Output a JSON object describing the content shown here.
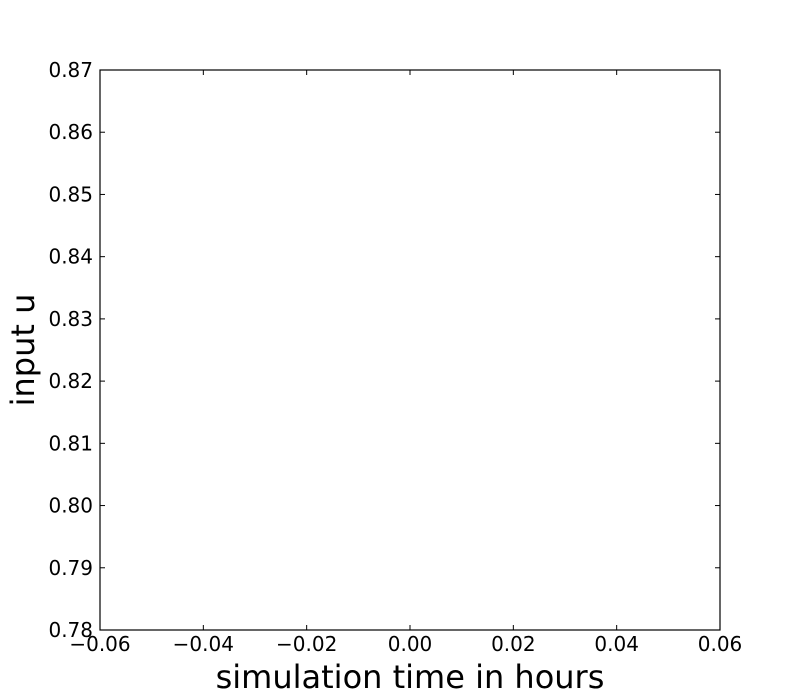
{
  "chart_data": {
    "type": "line",
    "title": "",
    "xlabel": "simulation time in hours",
    "ylabel": "input u",
    "xlim": [
      -0.06,
      0.06
    ],
    "ylim": [
      0.78,
      0.87
    ],
    "x_ticks": [
      -0.06,
      -0.04,
      -0.02,
      0.0,
      0.02,
      0.04,
      0.06
    ],
    "x_tick_labels": [
      "−0.06",
      "−0.04",
      "−0.02",
      "0.00",
      "0.02",
      "0.04",
      "0.06"
    ],
    "y_ticks": [
      0.78,
      0.79,
      0.8,
      0.81,
      0.82,
      0.83,
      0.84,
      0.85,
      0.86,
      0.87
    ],
    "y_tick_labels": [
      "0.78",
      "0.79",
      "0.80",
      "0.81",
      "0.82",
      "0.83",
      "0.84",
      "0.85",
      "0.86",
      "0.87"
    ],
    "series": [],
    "grid": false,
    "legend": "none"
  }
}
